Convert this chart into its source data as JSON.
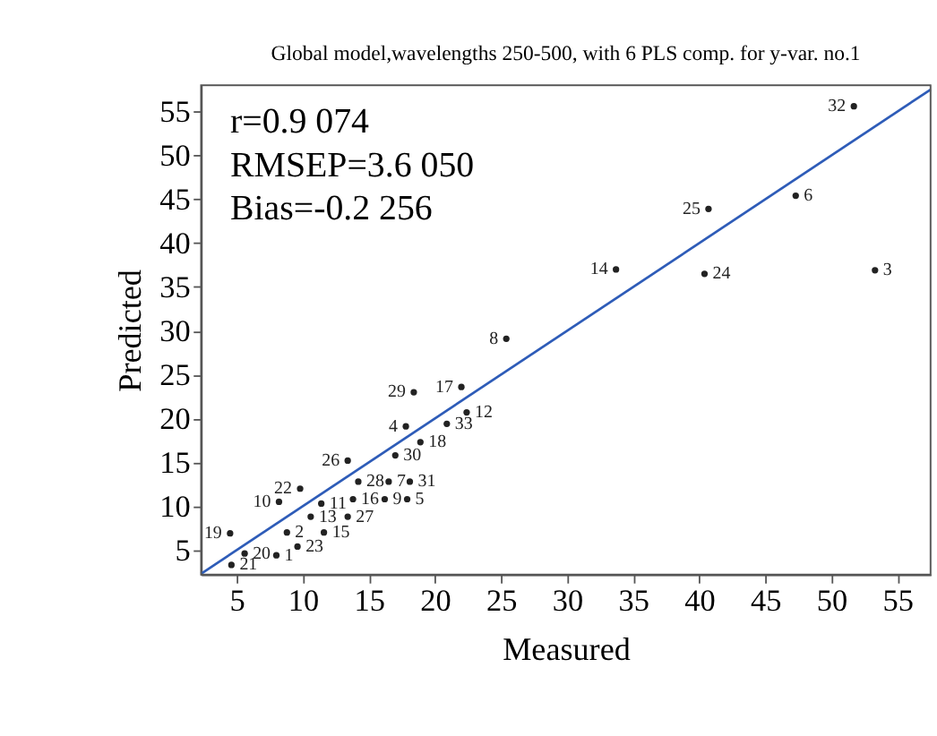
{
  "chart_data": {
    "type": "scatter",
    "marker": "circle",
    "title": "Global model,wavelengths 250-500, with 6 PLS comp. for y-var. no.1",
    "xlabel": "Measured",
    "ylabel": "Predicted",
    "xlim": [
      2.3,
      57.5
    ],
    "ylim": [
      2.2,
      58
    ],
    "xticks": [
      5,
      10,
      15,
      20,
      25,
      30,
      35,
      40,
      45,
      50,
      55
    ],
    "yticks": [
      5,
      10,
      15,
      20,
      25,
      30,
      35,
      40,
      45,
      50,
      55
    ],
    "annotations": [
      "r=0.9 074",
      "RMSEP=3.6 050",
      "Bias=-0.2 256",
      {
        "text": "32",
        "x": 51.7,
        "y": 55.6
      },
      {
        "text": "25",
        "x": 40.7,
        "y": 43.9
      },
      {
        "text": "6",
        "x": 47.3,
        "y": 45.4
      },
      {
        "text": "14",
        "x": 33.7,
        "y": 37.0
      },
      {
        "text": "24",
        "x": 40.4,
        "y": 36.5
      },
      {
        "text": "3",
        "x": 53.3,
        "y": 36.9
      },
      {
        "text": "8",
        "x": 25.4,
        "y": 29.1
      },
      {
        "text": "29",
        "x": 18.4,
        "y": 23.0
      },
      {
        "text": "17",
        "x": 22.0,
        "y": 23.6
      },
      {
        "text": "12",
        "x": 22.4,
        "y": 20.7
      },
      {
        "text": "33",
        "x": 20.9,
        "y": 19.4
      },
      {
        "text": "4",
        "x": 17.8,
        "y": 19.1
      },
      {
        "text": "18",
        "x": 18.9,
        "y": 17.3
      },
      {
        "text": "30",
        "x": 17.0,
        "y": 15.8
      },
      {
        "text": "26",
        "x": 13.4,
        "y": 15.2
      },
      {
        "text": "28",
        "x": 14.2,
        "y": 12.8
      },
      {
        "text": "7",
        "x": 16.5,
        "y": 12.8
      },
      {
        "text": "31",
        "x": 18.1,
        "y": 12.8
      },
      {
        "text": "16",
        "x": 13.8,
        "y": 10.8
      },
      {
        "text": "9",
        "x": 16.2,
        "y": 10.8
      },
      {
        "text": "5",
        "x": 17.9,
        "y": 10.8
      },
      {
        "text": "27",
        "x": 13.4,
        "y": 8.8
      },
      {
        "text": "22",
        "x": 9.8,
        "y": 12.0
      },
      {
        "text": "10",
        "x": 8.2,
        "y": 10.5
      },
      {
        "text": "11",
        "x": 11.4,
        "y": 10.3
      },
      {
        "text": "2",
        "x": 8.8,
        "y": 7.0
      },
      {
        "text": "15",
        "x": 11.6,
        "y": 7.0
      },
      {
        "text": "13",
        "x": 10.6,
        "y": 8.8
      },
      {
        "text": "23",
        "x": 9.6,
        "y": 5.4
      },
      {
        "text": "20",
        "x": 5.6,
        "y": 4.6
      },
      {
        "text": "1",
        "x": 8.0,
        "y": 4.4
      },
      {
        "text": "21",
        "x": 4.6,
        "y": 3.3
      },
      {
        "text": "19",
        "x": 4.5,
        "y": 6.9
      }
    ],
    "series": [
      {
        "color": "#222222",
        "x": [
          51.7,
          40.7,
          47.3,
          33.7,
          40.4,
          53.3,
          25.4,
          18.4,
          22.0,
          22.4,
          20.9,
          17.8,
          18.9,
          17.0,
          13.4,
          14.2,
          16.5,
          18.1,
          13.8,
          16.2,
          17.9,
          13.4,
          9.8,
          8.2,
          11.4,
          8.8,
          11.6,
          10.6,
          9.6,
          5.6,
          8.0,
          4.6,
          4.5
        ],
        "values": [
          55.6,
          43.9,
          45.4,
          37.0,
          36.5,
          36.9,
          29.1,
          23.0,
          23.6,
          20.7,
          19.4,
          19.1,
          17.3,
          15.8,
          15.2,
          12.8,
          12.8,
          12.8,
          10.8,
          10.8,
          10.8,
          8.8,
          12.0,
          10.5,
          10.3,
          7.0,
          7.0,
          8.8,
          5.4,
          4.6,
          4.4,
          3.3,
          6.9
        ]
      },
      {
        "type": "line",
        "marker": "none",
        "color": "#2e5cb8",
        "x": [
          2.3,
          57.5
        ],
        "values": [
          2.3,
          57.5
        ]
      }
    ]
  }
}
